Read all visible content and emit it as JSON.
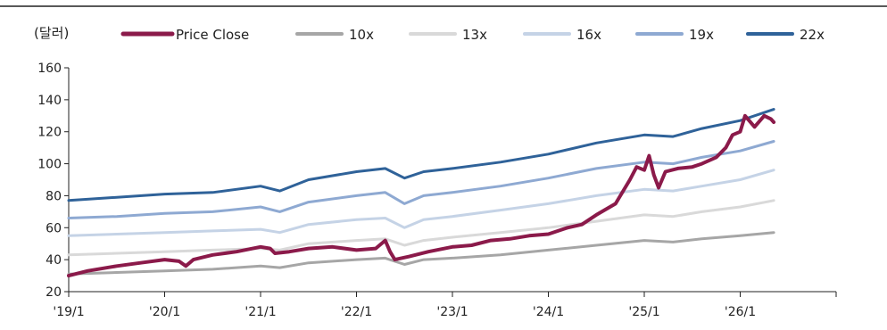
{
  "chart_data": {
    "type": "line",
    "unit_label": "(달러)",
    "ylim": [
      20,
      160
    ],
    "yticks": [
      20,
      40,
      60,
      80,
      100,
      120,
      140,
      160
    ],
    "xlim": [
      2019.0,
      2027.0
    ],
    "xticks": [
      {
        "value": 2019,
        "label": "'19/1"
      },
      {
        "value": 2020,
        "label": "'20/1"
      },
      {
        "value": 2021,
        "label": "'21/1"
      },
      {
        "value": 2022,
        "label": "'22/1"
      },
      {
        "value": 2023,
        "label": "'23/1"
      },
      {
        "value": 2024,
        "label": "'24/1"
      },
      {
        "value": 2025,
        "label": "'25/1"
      },
      {
        "value": 2026,
        "label": "'26/1"
      }
    ],
    "grid": false,
    "legend_position": "top",
    "series": [
      {
        "name": "Price Close",
        "color": "#8b1a4a",
        "points": [
          [
            2019.0,
            30
          ],
          [
            2019.2,
            33
          ],
          [
            2019.5,
            36
          ],
          [
            2019.75,
            38
          ],
          [
            2020.0,
            40
          ],
          [
            2020.15,
            39
          ],
          [
            2020.22,
            36
          ],
          [
            2020.3,
            40
          ],
          [
            2020.5,
            43
          ],
          [
            2020.75,
            45
          ],
          [
            2021.0,
            48
          ],
          [
            2021.1,
            47
          ],
          [
            2021.15,
            44
          ],
          [
            2021.3,
            45
          ],
          [
            2021.5,
            47
          ],
          [
            2021.75,
            48
          ],
          [
            2022.0,
            46
          ],
          [
            2022.2,
            47
          ],
          [
            2022.3,
            52
          ],
          [
            2022.35,
            45
          ],
          [
            2022.4,
            40
          ],
          [
            2022.55,
            42
          ],
          [
            2022.75,
            45
          ],
          [
            2023.0,
            48
          ],
          [
            2023.2,
            49
          ],
          [
            2023.4,
            52
          ],
          [
            2023.6,
            53
          ],
          [
            2023.8,
            55
          ],
          [
            2024.0,
            56
          ],
          [
            2024.2,
            60
          ],
          [
            2024.35,
            62
          ],
          [
            2024.5,
            68
          ],
          [
            2024.7,
            75
          ],
          [
            2024.85,
            90
          ],
          [
            2024.92,
            98
          ],
          [
            2025.0,
            96
          ],
          [
            2025.05,
            105
          ],
          [
            2025.1,
            93
          ],
          [
            2025.15,
            85
          ],
          [
            2025.22,
            95
          ],
          [
            2025.35,
            97
          ],
          [
            2025.5,
            98
          ],
          [
            2025.6,
            100
          ],
          [
            2025.75,
            104
          ],
          [
            2025.85,
            110
          ],
          [
            2025.92,
            118
          ],
          [
            2026.0,
            120
          ],
          [
            2026.05,
            130
          ],
          [
            2026.15,
            123
          ],
          [
            2026.25,
            130
          ],
          [
            2026.32,
            128
          ],
          [
            2026.35,
            126
          ]
        ]
      },
      {
        "name": "10x",
        "color": "#a6a6a6",
        "points": [
          [
            2019.0,
            31
          ],
          [
            2019.5,
            32
          ],
          [
            2020.0,
            33
          ],
          [
            2020.5,
            34
          ],
          [
            2021.0,
            36
          ],
          [
            2021.2,
            35
          ],
          [
            2021.5,
            38
          ],
          [
            2022.0,
            40
          ],
          [
            2022.3,
            41
          ],
          [
            2022.5,
            37
          ],
          [
            2022.7,
            40
          ],
          [
            2023.0,
            41
          ],
          [
            2023.5,
            43
          ],
          [
            2024.0,
            46
          ],
          [
            2024.5,
            49
          ],
          [
            2025.0,
            52
          ],
          [
            2025.3,
            51
          ],
          [
            2025.6,
            53
          ],
          [
            2026.0,
            55
          ],
          [
            2026.35,
            57
          ]
        ]
      },
      {
        "name": "13x",
        "color": "#d9d9d9",
        "points": [
          [
            2019.0,
            43
          ],
          [
            2019.5,
            44
          ],
          [
            2020.0,
            45
          ],
          [
            2020.5,
            46
          ],
          [
            2021.0,
            47
          ],
          [
            2021.2,
            46
          ],
          [
            2021.5,
            50
          ],
          [
            2022.0,
            52
          ],
          [
            2022.3,
            53
          ],
          [
            2022.5,
            49
          ],
          [
            2022.7,
            52
          ],
          [
            2023.0,
            54
          ],
          [
            2023.5,
            57
          ],
          [
            2024.0,
            60
          ],
          [
            2024.5,
            64
          ],
          [
            2025.0,
            68
          ],
          [
            2025.3,
            67
          ],
          [
            2025.6,
            70
          ],
          [
            2026.0,
            73
          ],
          [
            2026.35,
            77
          ]
        ]
      },
      {
        "name": "16x",
        "color": "#c5d3e6",
        "points": [
          [
            2019.0,
            55
          ],
          [
            2019.5,
            56
          ],
          [
            2020.0,
            57
          ],
          [
            2020.5,
            58
          ],
          [
            2021.0,
            59
          ],
          [
            2021.2,
            57
          ],
          [
            2021.5,
            62
          ],
          [
            2022.0,
            65
          ],
          [
            2022.3,
            66
          ],
          [
            2022.5,
            60
          ],
          [
            2022.7,
            65
          ],
          [
            2023.0,
            67
          ],
          [
            2023.5,
            71
          ],
          [
            2024.0,
            75
          ],
          [
            2024.5,
            80
          ],
          [
            2025.0,
            84
          ],
          [
            2025.3,
            83
          ],
          [
            2025.6,
            86
          ],
          [
            2026.0,
            90
          ],
          [
            2026.35,
            96
          ]
        ]
      },
      {
        "name": "19x",
        "color": "#8ea9d2",
        "points": [
          [
            2019.0,
            66
          ],
          [
            2019.5,
            67
          ],
          [
            2020.0,
            69
          ],
          [
            2020.5,
            70
          ],
          [
            2021.0,
            73
          ],
          [
            2021.2,
            70
          ],
          [
            2021.5,
            76
          ],
          [
            2022.0,
            80
          ],
          [
            2022.3,
            82
          ],
          [
            2022.5,
            75
          ],
          [
            2022.7,
            80
          ],
          [
            2023.0,
            82
          ],
          [
            2023.5,
            86
          ],
          [
            2024.0,
            91
          ],
          [
            2024.5,
            97
          ],
          [
            2025.0,
            101
          ],
          [
            2025.3,
            100
          ],
          [
            2025.6,
            104
          ],
          [
            2026.0,
            108
          ],
          [
            2026.35,
            114
          ]
        ]
      },
      {
        "name": "22x",
        "color": "#2f6299",
        "points": [
          [
            2019.0,
            77
          ],
          [
            2019.5,
            79
          ],
          [
            2020.0,
            81
          ],
          [
            2020.5,
            82
          ],
          [
            2021.0,
            86
          ],
          [
            2021.2,
            83
          ],
          [
            2021.5,
            90
          ],
          [
            2022.0,
            95
          ],
          [
            2022.3,
            97
          ],
          [
            2022.5,
            91
          ],
          [
            2022.7,
            95
          ],
          [
            2023.0,
            97
          ],
          [
            2023.5,
            101
          ],
          [
            2024.0,
            106
          ],
          [
            2024.5,
            113
          ],
          [
            2025.0,
            118
          ],
          [
            2025.3,
            117
          ],
          [
            2025.6,
            122
          ],
          [
            2026.0,
            127
          ],
          [
            2026.35,
            134
          ]
        ]
      }
    ]
  }
}
